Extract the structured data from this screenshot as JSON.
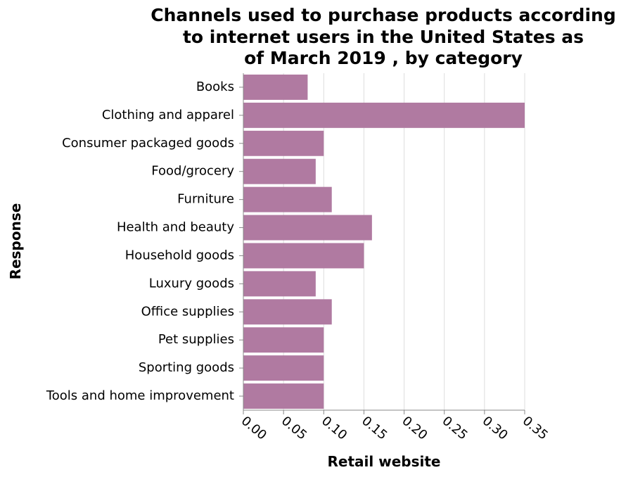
{
  "chart_data": {
    "type": "bar",
    "orientation": "horizontal",
    "title_lines": [
      "Channels used to purchase products according",
      "to internet users in the United States as",
      "of March 2019 , by category"
    ],
    "xlabel": "Retail website",
    "ylabel": "Response",
    "categories": [
      "Books",
      "Clothing and apparel",
      "Consumer packaged goods",
      "Food/grocery",
      "Furniture",
      "Health and beauty",
      "Household goods",
      "Luxury goods",
      "Office supplies",
      "Pet supplies",
      "Sporting goods",
      "Tools and home improvement"
    ],
    "values": [
      0.08,
      0.35,
      0.1,
      0.09,
      0.11,
      0.16,
      0.15,
      0.09,
      0.11,
      0.1,
      0.1,
      0.1
    ],
    "xlim": [
      0,
      0.35
    ],
    "xticks": [
      "0.00",
      "0.05",
      "0.10",
      "0.15",
      "0.20",
      "0.25",
      "0.30",
      "0.35"
    ],
    "grid": true,
    "legend": "none",
    "bar_color": "#b07aa1"
  }
}
